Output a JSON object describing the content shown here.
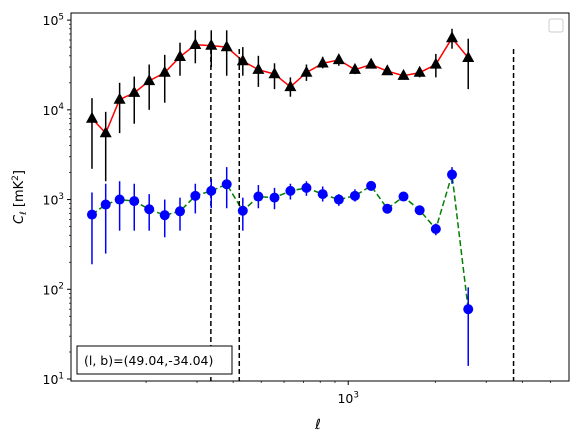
{
  "chart_data": {
    "type": "line",
    "xlabel": "ℓ",
    "ylabel": "C_ℓ [mK²]",
    "xscale": "log",
    "yscale": "log",
    "xlim": [
      110,
      5800
    ],
    "ylim": [
      9.5,
      120000
    ],
    "x_ticks": [
      {
        "value": 1000,
        "label": "10^3"
      }
    ],
    "y_ticks": [
      {
        "value": 10,
        "label": "10^1"
      },
      {
        "value": 100,
        "label": "10^2"
      },
      {
        "value": 1000,
        "label": "10^3"
      },
      {
        "value": 10000,
        "label": "10^4"
      },
      {
        "value": 100000,
        "label": "10^5"
      }
    ],
    "grid": false,
    "legend": "top-right (empty)",
    "annotation": "(l, b)=(49.04,-34.04)",
    "vlines": [
      335,
      420,
      3730
    ],
    "series": [
      {
        "marker": "triangle",
        "color": "#000000",
        "line_color": "#ff0000",
        "line_style": "solid",
        "points": [
          {
            "x": 130,
            "y": 8000,
            "lo": 2200,
            "hi": 13500
          },
          {
            "x": 145,
            "y": 5500,
            "lo": 1600,
            "hi": 9500
          },
          {
            "x": 162,
            "y": 13000,
            "lo": 5500,
            "hi": 20000
          },
          {
            "x": 182,
            "y": 15500,
            "lo": 7000,
            "hi": 23500
          },
          {
            "x": 205,
            "y": 21000,
            "lo": 10000,
            "hi": 32000
          },
          {
            "x": 232,
            "y": 26000,
            "lo": 12000,
            "hi": 41000
          },
          {
            "x": 262,
            "y": 39000,
            "lo": 24000,
            "hi": 56000
          },
          {
            "x": 296,
            "y": 53000,
            "lo": 33000,
            "hi": 77000
          },
          {
            "x": 336,
            "y": 52000,
            "lo": 30000,
            "hi": 77000
          },
          {
            "x": 380,
            "y": 50000,
            "lo": 24000,
            "hi": 77000
          },
          {
            "x": 432,
            "y": 35000,
            "lo": 24000,
            "hi": 50000
          },
          {
            "x": 489,
            "y": 28000,
            "lo": 18000,
            "hi": 40000
          },
          {
            "x": 556,
            "y": 25000,
            "lo": 17000,
            "hi": 33000
          },
          {
            "x": 631,
            "y": 18000,
            "lo": 14000,
            "hi": 23000
          },
          {
            "x": 717,
            "y": 26000,
            "lo": 21000,
            "hi": 32000
          },
          {
            "x": 816,
            "y": 33000,
            "lo": 29000,
            "hi": 39000
          },
          {
            "x": 928,
            "y": 36000,
            "lo": 31000,
            "hi": 41000
          },
          {
            "x": 1055,
            "y": 28000,
            "lo": 25000,
            "hi": 31000
          },
          {
            "x": 1200,
            "y": 32000,
            "lo": 29000,
            "hi": 35000
          },
          {
            "x": 1365,
            "y": 27000,
            "lo": 25000,
            "hi": 29000
          },
          {
            "x": 1553,
            "y": 24000,
            "lo": 22000,
            "hi": 26000
          },
          {
            "x": 1766,
            "y": 26000,
            "lo": 23000,
            "hi": 29000
          },
          {
            "x": 2009,
            "y": 32000,
            "lo": 23000,
            "hi": 42000
          },
          {
            "x": 2285,
            "y": 63000,
            "lo": 48000,
            "hi": 80000
          },
          {
            "x": 2600,
            "y": 38000,
            "lo": 17000,
            "hi": 62000
          }
        ]
      },
      {
        "marker": "circle",
        "color": "#0000ff",
        "line_color": "#008000",
        "line_style": "dashed",
        "points": [
          {
            "x": 130,
            "y": 680,
            "lo": 190,
            "hi": 1200
          },
          {
            "x": 145,
            "y": 880,
            "lo": 250,
            "hi": 1500
          },
          {
            "x": 162,
            "y": 1000,
            "lo": 450,
            "hi": 1600
          },
          {
            "x": 182,
            "y": 960,
            "lo": 450,
            "hi": 1500
          },
          {
            "x": 205,
            "y": 780,
            "lo": 450,
            "hi": 1150
          },
          {
            "x": 232,
            "y": 670,
            "lo": 380,
            "hi": 1000
          },
          {
            "x": 262,
            "y": 740,
            "lo": 450,
            "hi": 1050
          },
          {
            "x": 296,
            "y": 1100,
            "lo": 700,
            "hi": 1500
          },
          {
            "x": 336,
            "y": 1250,
            "lo": 800,
            "hi": 1700
          },
          {
            "x": 380,
            "y": 1480,
            "lo": 800,
            "hi": 2300
          },
          {
            "x": 432,
            "y": 750,
            "lo": 450,
            "hi": 1050
          },
          {
            "x": 489,
            "y": 1080,
            "lo": 800,
            "hi": 1450
          },
          {
            "x": 556,
            "y": 1050,
            "lo": 780,
            "hi": 1350
          },
          {
            "x": 631,
            "y": 1250,
            "lo": 1000,
            "hi": 1500
          },
          {
            "x": 717,
            "y": 1350,
            "lo": 1100,
            "hi": 1600
          },
          {
            "x": 816,
            "y": 1150,
            "lo": 950,
            "hi": 1400
          },
          {
            "x": 928,
            "y": 1000,
            "lo": 850,
            "hi": 1150
          },
          {
            "x": 1055,
            "y": 1100,
            "lo": 950,
            "hi": 1300
          },
          {
            "x": 1200,
            "y": 1420,
            "lo": 1250,
            "hi": 1600
          },
          {
            "x": 1365,
            "y": 790,
            "lo": 700,
            "hi": 880
          },
          {
            "x": 1553,
            "y": 1080,
            "lo": 980,
            "hi": 1180
          },
          {
            "x": 1766,
            "y": 760,
            "lo": 680,
            "hi": 840
          },
          {
            "x": 2009,
            "y": 470,
            "lo": 400,
            "hi": 540
          },
          {
            "x": 2285,
            "y": 1900,
            "lo": 1500,
            "hi": 2300
          },
          {
            "x": 2600,
            "y": 60,
            "lo": 14,
            "hi": 105
          }
        ]
      }
    ]
  }
}
